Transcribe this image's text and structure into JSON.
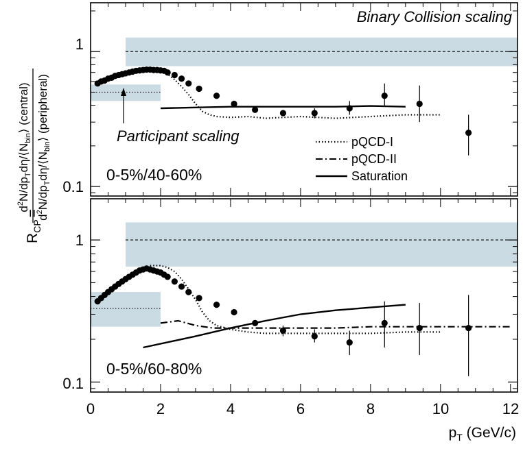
{
  "chart_data": {
    "type": "scatter",
    "y_axis_label": {
      "prefix": "R",
      "prefix_sub": "CP",
      "eq": "=",
      "num": {
        "a": "d",
        "a_sup": "2",
        "b": "N/dp",
        "b_sub": "T",
        "c": "dη/⟨N",
        "c_sub": "bin",
        "d": "⟩ (central)"
      },
      "den": {
        "a": "d",
        "a_sup": "2",
        "b": "N/dp",
        "b_sub": "T",
        "c": "dη/⟨N",
        "c_sub": "bin",
        "d": "⟩ (peripheral)"
      }
    },
    "x_axis": {
      "label_main": "p",
      "label_sub": "T",
      "label_rest": " (GeV/c)",
      "range": [
        0,
        12.2
      ],
      "ticks": [
        "0",
        "2",
        "4",
        "6",
        "8",
        "10",
        "12"
      ]
    },
    "y_scale": "log",
    "legend": {
      "position": "middle-right of top panel",
      "entries": [
        {
          "label": "pQCD-I",
          "style": "dotted"
        },
        {
          "label": "pQCD-II",
          "style": "dash-dot"
        },
        {
          "label": "Saturation",
          "style": "solid"
        }
      ]
    },
    "annotations": {
      "binary": "Binary Collision scaling",
      "participant": "Participant scaling"
    },
    "panels": [
      {
        "label": "0-5%/40-60%",
        "ylim": [
          0.085,
          2.3
        ],
        "yticks": [
          "0.1",
          "1"
        ],
        "binary_band": {
          "x": [
            1.0,
            12.2
          ],
          "center": 1.0,
          "lo": 0.78,
          "hi": 1.27
        },
        "participant_band": {
          "x": [
            0.0,
            2.0
          ],
          "center": 0.5,
          "lo": 0.43,
          "hi": 0.57
        },
        "data": {
          "x": [
            0.2,
            0.3,
            0.4,
            0.5,
            0.6,
            0.7,
            0.8,
            0.9,
            1.0,
            1.1,
            1.2,
            1.3,
            1.4,
            1.5,
            1.6,
            1.7,
            1.8,
            1.9,
            2.0,
            2.1,
            2.2,
            2.4,
            2.6,
            2.8,
            3.1,
            3.6,
            4.1,
            4.7,
            5.5,
            6.4,
            7.4,
            8.4,
            9.4,
            10.8
          ],
          "y": [
            0.58,
            0.6,
            0.61,
            0.63,
            0.64,
            0.66,
            0.67,
            0.68,
            0.69,
            0.7,
            0.71,
            0.72,
            0.725,
            0.73,
            0.735,
            0.735,
            0.73,
            0.73,
            0.725,
            0.72,
            0.7,
            0.67,
            0.63,
            0.58,
            0.53,
            0.47,
            0.41,
            0.37,
            0.35,
            0.35,
            0.38,
            0.47,
            0.41,
            0.25
          ],
          "err_lo": [
            null,
            null,
            null,
            null,
            null,
            null,
            null,
            null,
            null,
            null,
            null,
            null,
            null,
            null,
            null,
            null,
            null,
            null,
            null,
            null,
            null,
            null,
            null,
            null,
            null,
            null,
            null,
            null,
            null,
            0.32,
            0.34,
            0.39,
            0.3,
            0.17
          ],
          "err_hi": [
            null,
            null,
            null,
            null,
            null,
            null,
            null,
            null,
            null,
            null,
            null,
            null,
            null,
            null,
            null,
            null,
            null,
            null,
            null,
            null,
            null,
            null,
            null,
            null,
            null,
            null,
            null,
            null,
            null,
            0.38,
            0.43,
            0.58,
            0.56,
            0.34
          ]
        },
        "curves": [
          {
            "name": "pQCD-I",
            "style": "dotted",
            "x": [
              2.0,
              2.2,
              2.4,
              2.6,
              2.8,
              3.0,
              3.2,
              3.4,
              3.6,
              4.0,
              4.5,
              5.0,
              6.0,
              7.0,
              8.0,
              9.0,
              10.0
            ],
            "y": [
              0.72,
              0.68,
              0.62,
              0.55,
              0.48,
              0.41,
              0.36,
              0.34,
              0.33,
              0.325,
              0.33,
              0.32,
              0.33,
              0.32,
              0.33,
              0.34,
              0.34
            ]
          },
          {
            "name": "Saturation",
            "style": "solid",
            "x": [
              2.0,
              3.0,
              4.0,
              5.0,
              6.0,
              7.0,
              8.0,
              9.0
            ],
            "y": [
              0.38,
              0.385,
              0.39,
              0.39,
              0.39,
              0.39,
              0.395,
              0.39
            ]
          }
        ]
      },
      {
        "label": "0-5%/60-80%",
        "ylim": [
          0.085,
          1.95
        ],
        "yticks": [
          "0.1",
          "1"
        ],
        "binary_band": {
          "x": [
            1.0,
            12.2
          ],
          "center": 1.0,
          "lo": 0.65,
          "hi": 1.33
        },
        "participant_band": {
          "x": [
            0.0,
            2.0
          ],
          "center": 0.33,
          "lo": 0.245,
          "hi": 0.43
        },
        "data": {
          "x": [
            0.2,
            0.3,
            0.4,
            0.5,
            0.6,
            0.7,
            0.8,
            0.9,
            1.0,
            1.1,
            1.2,
            1.3,
            1.4,
            1.5,
            1.6,
            1.7,
            1.8,
            1.9,
            2.0,
            2.1,
            2.2,
            2.4,
            2.6,
            2.8,
            3.1,
            3.6,
            4.1,
            4.7,
            5.5,
            6.4,
            7.4,
            8.4,
            9.4,
            10.8
          ],
          "y": [
            0.37,
            0.39,
            0.41,
            0.43,
            0.45,
            0.47,
            0.49,
            0.51,
            0.53,
            0.55,
            0.57,
            0.59,
            0.61,
            0.62,
            0.63,
            0.62,
            0.61,
            0.6,
            0.59,
            0.57,
            0.55,
            0.51,
            0.47,
            0.43,
            0.39,
            0.35,
            0.31,
            0.26,
            0.23,
            0.21,
            0.19,
            0.26,
            0.24,
            0.24
          ],
          "err_lo": [
            null,
            null,
            null,
            null,
            null,
            null,
            null,
            null,
            null,
            null,
            null,
            null,
            null,
            null,
            null,
            null,
            null,
            null,
            null,
            null,
            null,
            null,
            null,
            null,
            null,
            null,
            null,
            null,
            0.21,
            0.19,
            0.155,
            0.175,
            0.155,
            0.11
          ],
          "err_hi": [
            null,
            null,
            null,
            null,
            null,
            null,
            null,
            null,
            null,
            null,
            null,
            null,
            null,
            null,
            null,
            null,
            null,
            null,
            null,
            null,
            null,
            null,
            null,
            null,
            null,
            null,
            null,
            null,
            0.25,
            0.235,
            0.23,
            0.37,
            0.36,
            0.41
          ]
        },
        "curves": [
          {
            "name": "pQCD-I",
            "style": "dotted",
            "x": [
              1.7,
              2.0,
              2.2,
              2.4,
              2.6,
              2.8,
              3.0,
              3.2,
              3.4,
              3.6,
              4.0,
              4.5,
              5.0,
              6.0,
              7.0,
              8.0,
              9.0,
              10.0
            ],
            "y": [
              0.66,
              0.66,
              0.64,
              0.6,
              0.53,
              0.45,
              0.38,
              0.31,
              0.27,
              0.25,
              0.235,
              0.225,
              0.22,
              0.22,
              0.22,
              0.22,
              0.225,
              0.225
            ]
          },
          {
            "name": "pQCD-II",
            "style": "dash-dot",
            "x": [
              2.0,
              2.5,
              3.0,
              3.5,
              4.0,
              4.5,
              5.0,
              6.0,
              7.0,
              8.0,
              9.0,
              10.0,
              11.0,
              12.0
            ],
            "y": [
              0.26,
              0.27,
              0.25,
              0.24,
              0.24,
              0.24,
              0.24,
              0.24,
              0.24,
              0.245,
              0.245,
              0.245,
              0.245,
              0.245
            ]
          },
          {
            "name": "Saturation",
            "style": "solid",
            "x": [
              1.5,
              3.0,
              4.0,
              5.0,
              6.0,
              7.0,
              8.0,
              9.0
            ],
            "y": [
              0.175,
              0.21,
              0.24,
              0.27,
              0.3,
              0.32,
              0.335,
              0.35
            ]
          }
        ]
      }
    ]
  }
}
